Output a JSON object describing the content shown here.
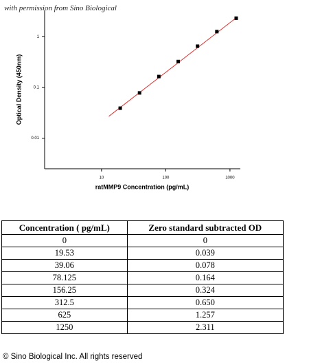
{
  "header": {
    "text": "with permission from Sino Biological"
  },
  "chart_data": {
    "type": "scatter",
    "x_label": "ratMMP9 Concentration (pg/mL)",
    "y_label": "Optical Density (450nm)",
    "xlog": true,
    "ylog": true,
    "xlim": [
      1.3,
      1450
    ],
    "ylim": [
      0.0025,
      3.3
    ],
    "xticks": [
      10,
      100,
      1000
    ],
    "yticks": [
      0.01,
      0.1,
      1
    ],
    "points": {
      "color": "#000000",
      "x": [
        19.53,
        39.06,
        78.125,
        156.25,
        312.5,
        625,
        1250
      ],
      "values": [
        0.039,
        0.078,
        0.164,
        0.324,
        0.65,
        1.257,
        2.311
      ]
    },
    "fit": {
      "color": "#e03030",
      "x": [
        13,
        1250
      ],
      "values": [
        0.027,
        2.35
      ]
    }
  },
  "table": {
    "columns": [
      "Concentration ( pg/mL)",
      "Zero standard subtracted OD"
    ],
    "rows": [
      [
        "0",
        "0"
      ],
      [
        "19.53",
        "0.039"
      ],
      [
        "39.06",
        "0.078"
      ],
      [
        "78.125",
        "0.164"
      ],
      [
        "156.25",
        "0.324"
      ],
      [
        "312.5",
        "0.650"
      ],
      [
        "625",
        "1.257"
      ],
      [
        "1250",
        "2.311"
      ]
    ]
  },
  "footer": {
    "text": "© Sino Biological Inc. All rights reserved"
  }
}
